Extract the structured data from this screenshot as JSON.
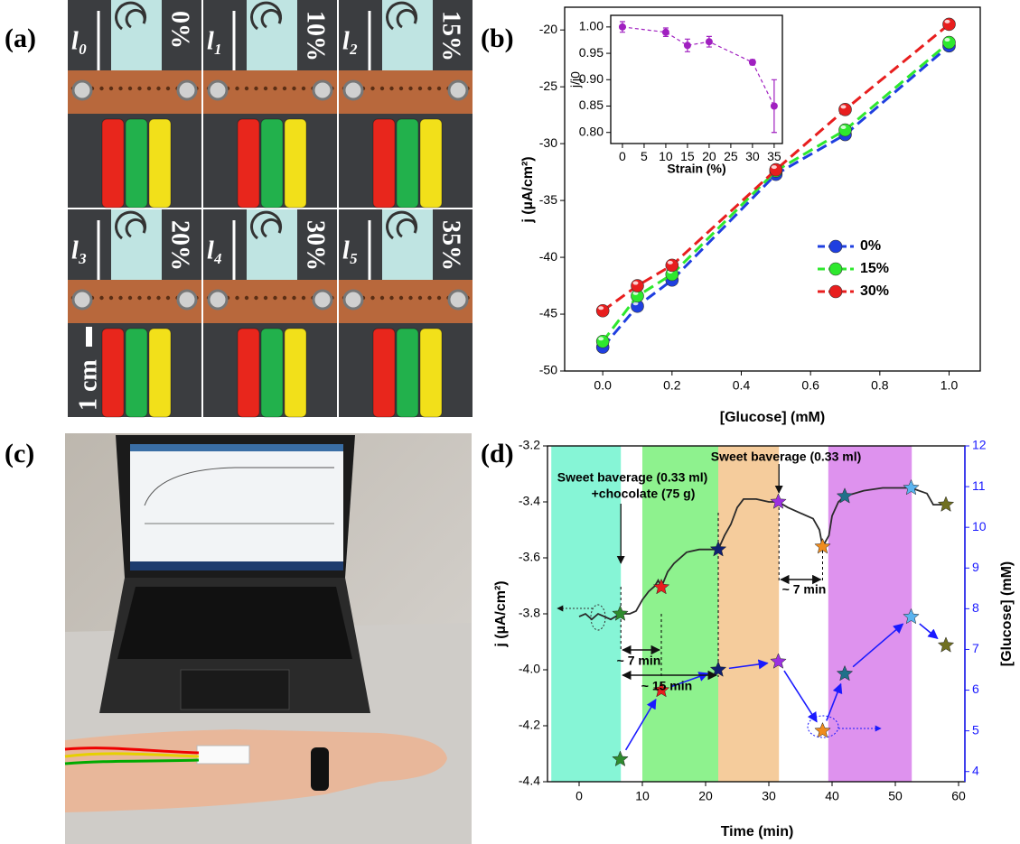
{
  "panel_labels": {
    "a": "(a)",
    "b": "(b)",
    "c": "(c)",
    "d": "(d)"
  },
  "panel_a": {
    "cells": [
      {
        "length": "l₀",
        "strain": "0%"
      },
      {
        "length": "l₁",
        "strain": "10%"
      },
      {
        "length": "l₂",
        "strain": "15%"
      },
      {
        "length": "l₃",
        "strain": "20%"
      },
      {
        "length": "l₄",
        "strain": "30%"
      },
      {
        "length": "l₅",
        "strain": "35%"
      }
    ],
    "scale_bar": "1 cm"
  },
  "chart_data": [
    {
      "type": "line",
      "x_label": "[Glucose] (mM)",
      "y_label": "j (µA/cm²)",
      "x": [
        0,
        0.1,
        0.2,
        0.5,
        0.7,
        1.0
      ],
      "series": [
        {
          "name": "0%",
          "color": "#1f3fe0",
          "values": [
            -47.9,
            -44.3,
            -42.0,
            -32.7,
            -29.2,
            -21.4
          ]
        },
        {
          "name": "15%",
          "color": "#2ee82e",
          "values": [
            -47.4,
            -43.4,
            -41.5,
            -32.4,
            -28.8,
            -21.1
          ]
        },
        {
          "name": "30%",
          "color": "#e81e1e",
          "values": [
            -44.7,
            -42.5,
            -40.7,
            -32.3,
            -27.0,
            -19.5
          ]
        }
      ],
      "xlim": [
        -0.11,
        1.09
      ],
      "ylim": [
        -50,
        -18
      ],
      "xticks": [
        {
          "value": 0,
          "label": "0.0"
        },
        {
          "value": 0.2,
          "label": "0.2"
        },
        {
          "value": 0.4,
          "label": "0.4"
        },
        {
          "value": 0.6,
          "label": "0.6"
        },
        {
          "value": 0.8,
          "label": "0.8"
        },
        {
          "value": 1.0,
          "label": "1.0"
        }
      ],
      "yticks": [
        -50,
        -45,
        -40,
        -35,
        -30,
        -25,
        -20
      ],
      "legend": "center right",
      "dashed": true
    },
    {
      "type": "errorbar",
      "x_label": "Strain (%)",
      "y_label": "j/j0",
      "x": [
        0,
        10,
        15,
        20,
        30,
        35
      ],
      "values": [
        1.0,
        0.99,
        0.965,
        0.972,
        0.933,
        0.85
      ],
      "errors": [
        0.01,
        0.008,
        0.012,
        0.01,
        0.005,
        0.05
      ],
      "color": "#a020c0",
      "xlim": [
        -2.7,
        36.9
      ],
      "ylim": [
        0.779,
        1.022
      ],
      "xticks": [
        0,
        5,
        10,
        15,
        20,
        25,
        30,
        35
      ],
      "yticks": [
        {
          "value": 0.8,
          "label": "0.80"
        },
        {
          "value": 0.85,
          "label": "0.85"
        },
        {
          "value": 0.9,
          "label": "0.90"
        },
        {
          "value": 0.95,
          "label": "0.95"
        },
        {
          "value": 1.0,
          "label": "1.00"
        }
      ],
      "dashed": true
    },
    {
      "type": "line",
      "x_label": "Time (min)",
      "y_label": "j (µA/cm²)",
      "y2_label": "[Glucose] (mM)",
      "xlim": [
        -5,
        61
      ],
      "ylim": [
        -4.4,
        -3.2
      ],
      "y2lim": [
        3.75,
        12
      ],
      "xticks": [
        0,
        10,
        20,
        30,
        40,
        50,
        60
      ],
      "yticks": [
        -4.4,
        -4.2,
        {
          "value": -4,
          "label": "-4.0"
        },
        -3.8,
        -3.6,
        -3.4,
        -3.2
      ],
      "y2ticks": [
        4,
        5,
        6,
        7,
        8,
        9,
        10,
        11,
        12
      ],
      "y2_color": "#1a1aff",
      "spans": [
        {
          "from": -4.4,
          "to": 6.6,
          "color": "#86f5d6"
        },
        {
          "from": 10,
          "to": 22,
          "color": "#8ef28e"
        },
        {
          "from": 22,
          "to": 31.6,
          "color": "#f5cc9c"
        },
        {
          "from": 39.4,
          "to": 52.6,
          "color": "#de92ee"
        }
      ],
      "events": [
        6.6,
        13,
        22,
        31.6,
        38.5
      ],
      "annotations": [
        "Sweet baverage (0.33 ml)",
        "+chocolate (75 g)",
        "Sweet baverage (0.33 ml)",
        "~ 7 min",
        "~ 15 min",
        "~ 7 min"
      ],
      "series": [
        {
          "color": "#2a2a2a",
          "x": [
            0,
            1,
            2,
            3,
            4,
            5,
            6.5,
            8,
            9,
            10,
            11,
            12,
            12.5,
            13,
            14,
            15,
            17,
            19,
            21,
            22,
            23,
            24,
            25,
            26,
            28,
            30,
            31.5,
            33,
            35,
            37,
            38,
            38.5,
            39.5,
            40,
            41,
            42,
            45,
            48,
            50,
            52.5,
            55,
            56,
            58
          ],
          "values": [
            -3.81,
            -3.8,
            -3.82,
            -3.8,
            -3.81,
            -3.82,
            -3.8,
            -3.8,
            -3.79,
            -3.75,
            -3.72,
            -3.7,
            -3.68,
            -3.705,
            -3.65,
            -3.62,
            -3.58,
            -3.57,
            -3.57,
            -3.57,
            -3.52,
            -3.48,
            -3.42,
            -3.39,
            -3.39,
            -3.4,
            -3.4,
            -3.42,
            -3.44,
            -3.46,
            -3.5,
            -3.56,
            -3.52,
            -3.45,
            -3.4,
            -3.38,
            -3.36,
            -3.35,
            -3.35,
            -3.35,
            -3.37,
            -3.41,
            -3.41
          ]
        },
        {
          "marker": "star",
          "x": [
            6.5,
            13,
            22,
            31.5,
            38.5,
            42,
            52.5,
            58
          ],
          "values": [
            -3.8,
            -3.705,
            -3.57,
            -3.4,
            -3.56,
            -3.38,
            -3.35,
            -3.41
          ],
          "colors": [
            "#2e8b2e",
            "#e81e1e",
            "#102070",
            "#9b30e0",
            "#f08c1e",
            "#20708a",
            "#5ab4f0",
            "#707020"
          ]
        },
        {
          "marker": "star",
          "axis": "y2",
          "color": "#1a1aff",
          "x": [
            6.5,
            13,
            22,
            31.5,
            38.5,
            42,
            52.5,
            58
          ],
          "values": [
            4.3,
            6.0,
            6.5,
            6.7,
            5.0,
            6.4,
            7.8,
            7.1
          ],
          "colors": [
            "#2e8b2e",
            "#e81e1e",
            "#102070",
            "#9b30e0",
            "#f08c1e",
            "#20708a",
            "#5ab4f0",
            "#707020"
          ]
        }
      ]
    }
  ]
}
